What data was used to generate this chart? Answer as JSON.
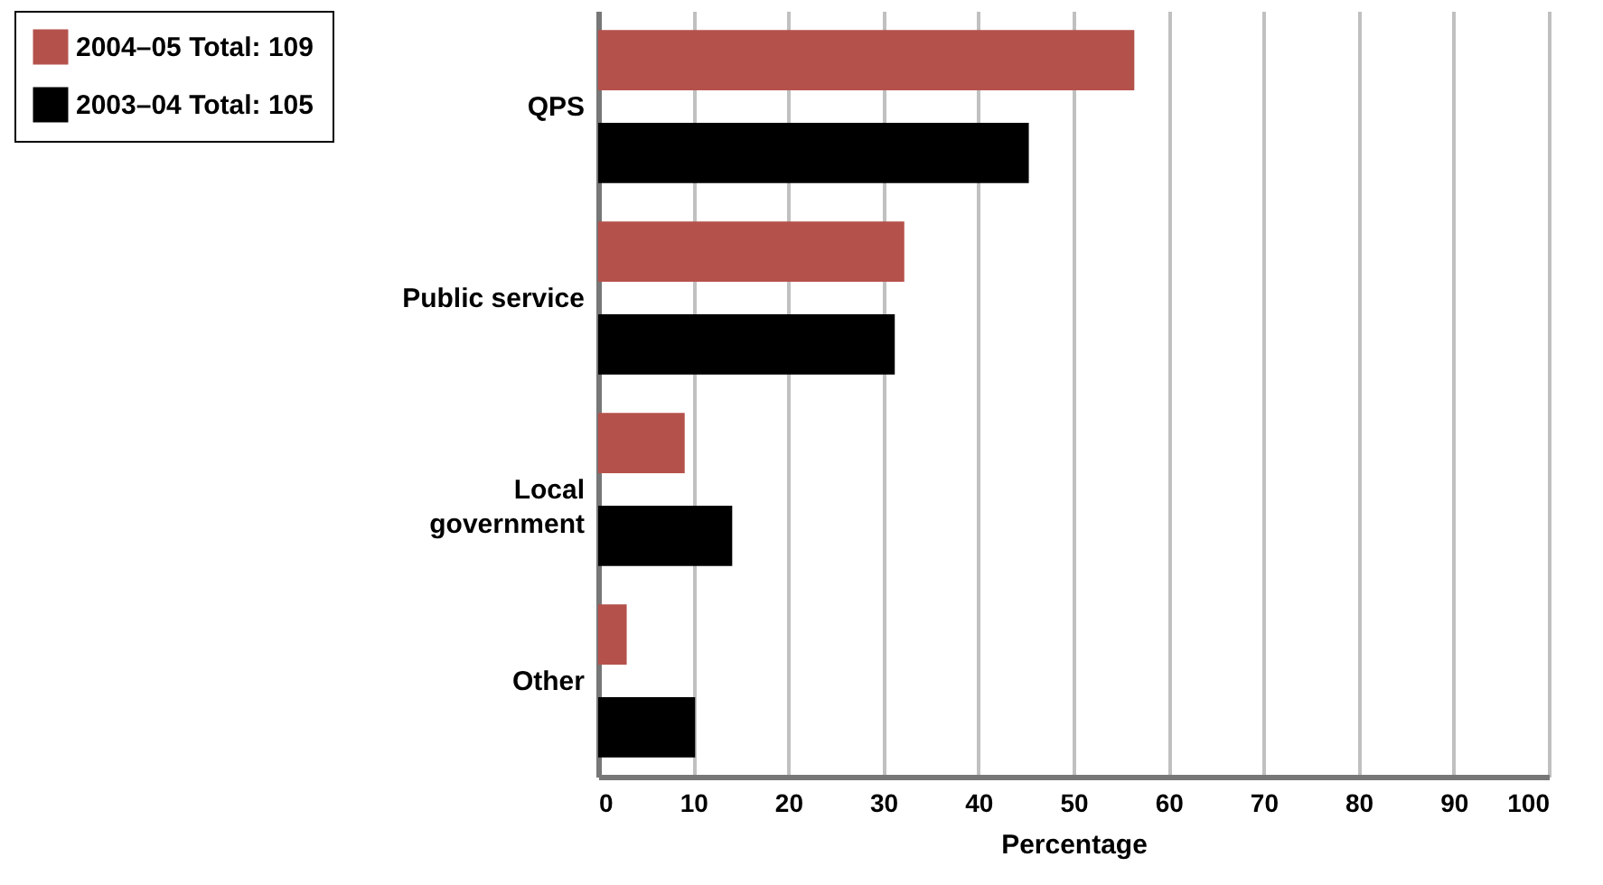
{
  "chart_data": {
    "type": "bar",
    "orientation": "horizontal",
    "xlabel": "Percentage",
    "categories": [
      "QPS",
      "Public service",
      "Local government",
      "Other"
    ],
    "series": [
      {
        "name": "2004–05 Total: 109",
        "color": "#b5514b",
        "values": [
          56.4,
          32.2,
          9.1,
          3.0
        ]
      },
      {
        "name": "2003–04 Total: 105",
        "color": "#000000",
        "values": [
          45.3,
          31.2,
          14.1,
          10.2
        ]
      }
    ],
    "xlim": [
      0,
      100
    ],
    "xticks": [
      0,
      10,
      20,
      30,
      40,
      50,
      60,
      70,
      80,
      90,
      100
    ],
    "grid": "x",
    "legend": "top left"
  }
}
